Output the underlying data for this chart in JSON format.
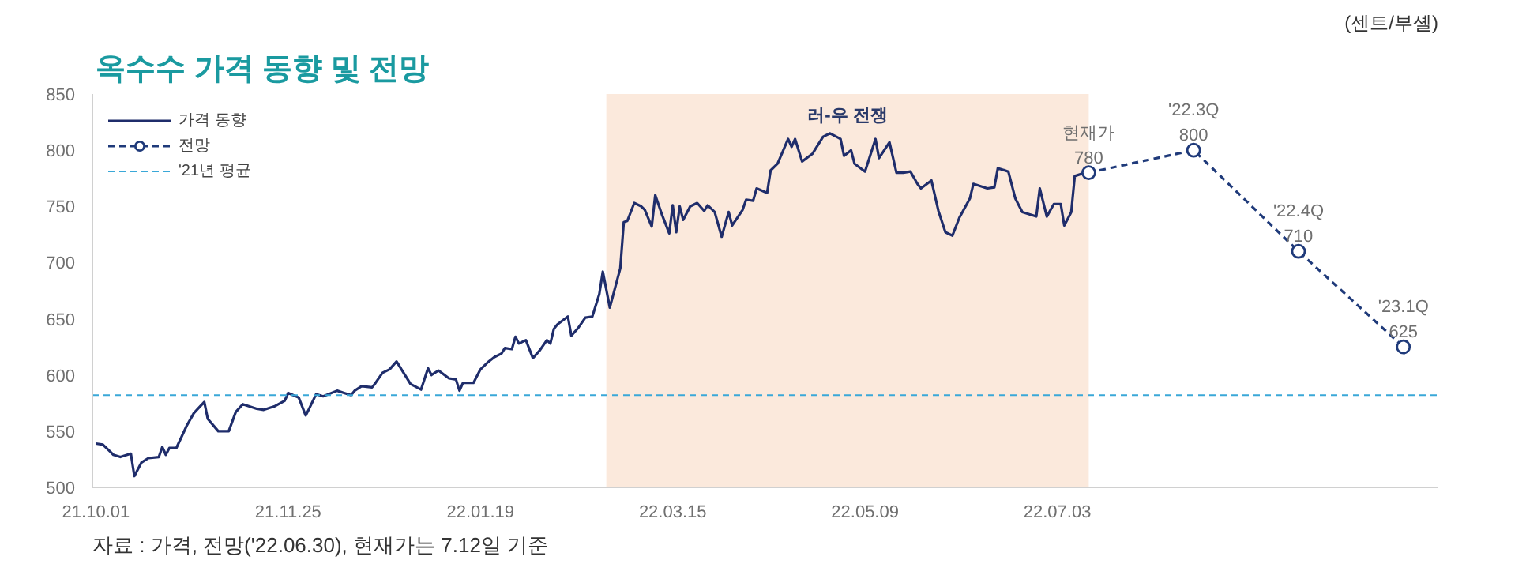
{
  "chart_data": {
    "type": "line",
    "title": "옥수수 가격 동향 및 전망",
    "ylabel": "(센트/부셸)",
    "xlim": [
      "2021-09-30",
      "2022-10-20"
    ],
    "xticks": [
      {
        "value": "2021-10-01",
        "label": "21.10.01"
      },
      {
        "value": "2021-11-25",
        "label": "21.11.25"
      },
      {
        "value": "2022-01-19",
        "label": "22.01.19"
      },
      {
        "value": "2022-03-15",
        "label": "22.03.15"
      },
      {
        "value": "2022-05-09",
        "label": "22.05.09"
      },
      {
        "value": "2022-07-03",
        "label": "22.07.03"
      }
    ],
    "ylim": [
      500,
      850
    ],
    "yticks": [
      500,
      550,
      600,
      650,
      700,
      750,
      800,
      850
    ],
    "grid": false,
    "legend": "top left",
    "series": [
      {
        "name": "가격 동향",
        "color": "#1f2d6b",
        "x": [
          "2021-10-01",
          "2021-10-03",
          "2021-10-05",
          "2021-10-06",
          "2021-10-08",
          "2021-10-11",
          "2021-10-12",
          "2021-10-14",
          "2021-10-16",
          "2021-10-19",
          "2021-10-20",
          "2021-10-21",
          "2021-10-22",
          "2021-10-24",
          "2021-10-27",
          "2021-10-29",
          "2021-11-01",
          "2021-11-02",
          "2021-11-05",
          "2021-11-08",
          "2021-11-10",
          "2021-11-12",
          "2021-11-16",
          "2021-11-18",
          "2021-11-21",
          "2021-11-24",
          "2021-11-25",
          "2021-11-28",
          "2021-11-30",
          "2021-12-01",
          "2021-12-03",
          "2021-12-05",
          "2021-12-09",
          "2021-12-11",
          "2021-12-13",
          "2021-12-14",
          "2021-12-16",
          "2021-12-19",
          "2021-12-20",
          "2021-12-22",
          "2021-12-24",
          "2021-12-26",
          "2021-12-28",
          "2021-12-30",
          "2022-01-02",
          "2022-01-04",
          "2022-01-05",
          "2022-01-07",
          "2022-01-10",
          "2022-01-12",
          "2022-01-13",
          "2022-01-14",
          "2022-01-17",
          "2022-01-19",
          "2022-01-21",
          "2022-01-23",
          "2022-01-25",
          "2022-01-26",
          "2022-01-28",
          "2022-01-29",
          "2022-01-30",
          "2022-02-01",
          "2022-02-03",
          "2022-02-05",
          "2022-02-07",
          "2022-02-08",
          "2022-02-09",
          "2022-02-10",
          "2022-02-13",
          "2022-02-14",
          "2022-02-16",
          "2022-02-18",
          "2022-02-20",
          "2022-02-22",
          "2022-02-23",
          "2022-02-25",
          "2022-02-28",
          "2022-03-01",
          "2022-03-02",
          "2022-03-04",
          "2022-03-06",
          "2022-03-07",
          "2022-03-09",
          "2022-03-10",
          "2022-03-12",
          "2022-03-14",
          "2022-03-15",
          "2022-03-16",
          "2022-03-17",
          "2022-03-18",
          "2022-03-20",
          "2022-03-22",
          "2022-03-24",
          "2022-03-25",
          "2022-03-27",
          "2022-03-29",
          "2022-03-31",
          "2022-04-01",
          "2022-04-04",
          "2022-04-05",
          "2022-04-07",
          "2022-04-08",
          "2022-04-11",
          "2022-04-12",
          "2022-04-14",
          "2022-04-17",
          "2022-04-18",
          "2022-04-19",
          "2022-04-21",
          "2022-04-24",
          "2022-04-27",
          "2022-04-29",
          "2022-05-02",
          "2022-05-03",
          "2022-05-05",
          "2022-05-06",
          "2022-05-09",
          "2022-05-12",
          "2022-05-13",
          "2022-05-16",
          "2022-05-18",
          "2022-05-20",
          "2022-05-22",
          "2022-05-24",
          "2022-05-25",
          "2022-05-28",
          "2022-05-30",
          "2022-06-01",
          "2022-06-03",
          "2022-06-05",
          "2022-06-08",
          "2022-06-09",
          "2022-06-13",
          "2022-06-15",
          "2022-06-16",
          "2022-06-19",
          "2022-06-21",
          "2022-06-23",
          "2022-06-27",
          "2022-06-28",
          "2022-06-30",
          "2022-07-02",
          "2022-07-04",
          "2022-07-05",
          "2022-07-07",
          "2022-07-08",
          "2022-07-11",
          "2022-07-12"
        ],
        "values": [
          539,
          538,
          532,
          529,
          527,
          530,
          510,
          522,
          526,
          527,
          536,
          529,
          535,
          535,
          555,
          566,
          576,
          561,
          550,
          550,
          567,
          574,
          570,
          569,
          572,
          577,
          584,
          580,
          564,
          570,
          583,
          581,
          586,
          584,
          582,
          586,
          590,
          589,
          593,
          602,
          605,
          612,
          602,
          592,
          587,
          606,
          600,
          604,
          597,
          596,
          586,
          593,
          593,
          605,
          611,
          616,
          619,
          624,
          623,
          634,
          628,
          631,
          615,
          622,
          631,
          628,
          641,
          645,
          652,
          635,
          642,
          651,
          652,
          672,
          692,
          660,
          695,
          736,
          737,
          753,
          750,
          747,
          732,
          760,
          742,
          726,
          751,
          727,
          750,
          738,
          750,
          753,
          746,
          751,
          745,
          723,
          745,
          733,
          747,
          756,
          755,
          766,
          762,
          782,
          788,
          810,
          803,
          810,
          790,
          797,
          812,
          815,
          810,
          795,
          800,
          788,
          781,
          810,
          793,
          807,
          780,
          780,
          781,
          770,
          766,
          773,
          746,
          727,
          724,
          740,
          757,
          770,
          766,
          767,
          784,
          781,
          757,
          745,
          741,
          766,
          741,
          752,
          752,
          733,
          745,
          777,
          780,
          780
        ]
      },
      {
        "name": "전망",
        "color": "#1f3a7a",
        "marker": "circle",
        "line_style": "dashed",
        "x": [
          "2022-07-12",
          "2022-08-11",
          "2022-09-10",
          "2022-10-10"
        ],
        "values": [
          780,
          800,
          710,
          625
        ],
        "value_labels": [
          "780",
          "800",
          "710",
          "625"
        ]
      }
    ],
    "ref_lines": [
      {
        "axis": "y",
        "value": 582,
        "label": "'21년 평균",
        "color": "#3aa8d8",
        "line_style": "dashed"
      }
    ],
    "bands": [
      {
        "axis": "x",
        "from": "2022-02-24",
        "to": "2022-07-12",
        "label": "러-우 전쟁",
        "color": "#fbe9dc"
      }
    ],
    "annotations": [
      {
        "text": "현재가",
        "x": "2022-07-12",
        "y": 780
      },
      {
        "text": "'22.3Q",
        "x": "2022-08-11",
        "y": 800
      },
      {
        "text": "'22.4Q",
        "x": "2022-09-10",
        "y": 710
      },
      {
        "text": "'23.1Q",
        "x": "2022-10-10",
        "y": 625
      },
      "자료 : 가격, 전망('22.06.30), 현재가는 7.12일 기준"
    ]
  }
}
